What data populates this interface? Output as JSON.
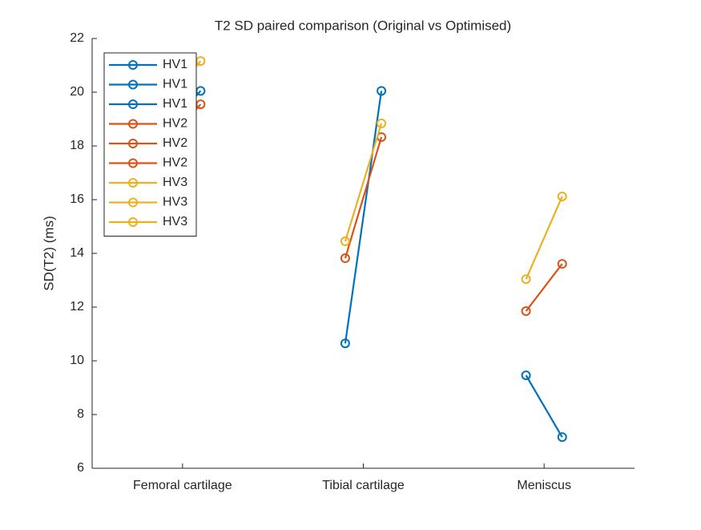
{
  "chart_data": {
    "type": "line",
    "title": "T2 SD paired comparison (Original vs Optimised)",
    "ylabel": "SD(T2) (ms)",
    "xlim": [
      0.5,
      3.5
    ],
    "xticks": [
      {
        "value": 1,
        "label": "Femoral cartilage"
      },
      {
        "value": 2,
        "label": "Tibial cartilage"
      },
      {
        "value": 3,
        "label": "Meniscus"
      }
    ],
    "ylim": [
      6,
      22
    ],
    "yticks": [
      6,
      8,
      10,
      12,
      14,
      16,
      18,
      20,
      22
    ],
    "legend": "upper left",
    "series": [
      {
        "name": "HV1",
        "color": "#0072BD",
        "x": [
          0.9,
          1.1
        ],
        "values": [
          18.5,
          20.05
        ]
      },
      {
        "name": "HV1",
        "color": "#0072BD",
        "x": [
          1.9,
          2.1
        ],
        "values": [
          10.65,
          20.05
        ]
      },
      {
        "name": "HV1",
        "color": "#0072BD",
        "x": [
          2.9,
          3.1
        ],
        "values": [
          9.46,
          7.16
        ]
      },
      {
        "name": "HV2",
        "color": "#D95319",
        "x": [
          0.9,
          1.1
        ],
        "values": [
          18.0,
          19.55
        ]
      },
      {
        "name": "HV2",
        "color": "#D95319",
        "x": [
          1.9,
          2.1
        ],
        "values": [
          13.82,
          18.33
        ]
      },
      {
        "name": "HV2",
        "color": "#D95319",
        "x": [
          2.9,
          3.1
        ],
        "values": [
          11.85,
          13.61
        ]
      },
      {
        "name": "HV3",
        "color": "#EDB120",
        "x": [
          0.9,
          1.1
        ],
        "values": [
          19.5,
          21.16
        ]
      },
      {
        "name": "HV3",
        "color": "#EDB120",
        "x": [
          1.9,
          2.1
        ],
        "values": [
          14.45,
          18.84
        ]
      },
      {
        "name": "HV3",
        "color": "#EDB120",
        "x": [
          2.9,
          3.1
        ],
        "values": [
          13.04,
          16.12
        ]
      }
    ]
  }
}
